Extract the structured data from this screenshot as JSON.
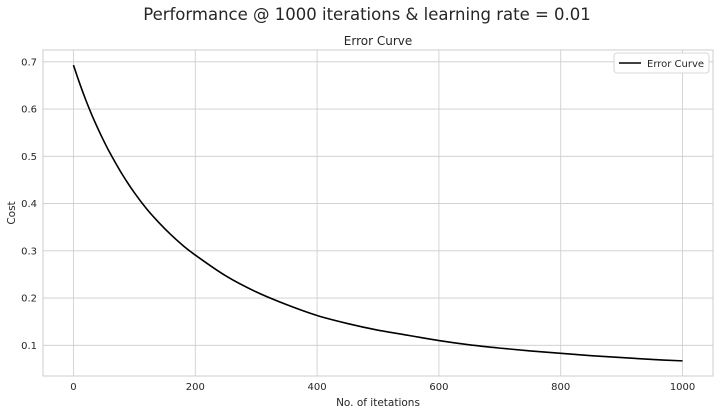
{
  "figure": {
    "suptitle": "Performance @ 1000 iterations & learning rate = 0.01"
  },
  "chart_data": {
    "type": "line",
    "title": "Error Curve",
    "xlabel": "No. of itetations",
    "ylabel": "Cost",
    "xlim": [
      -50,
      1050
    ],
    "ylim": [
      0.035,
      0.725
    ],
    "xticks": [
      0,
      200,
      400,
      600,
      800,
      1000
    ],
    "yticks": [
      0.1,
      0.2,
      0.3,
      0.4,
      0.5,
      0.6,
      0.7
    ],
    "xtick_labels": [
      "0",
      "200",
      "400",
      "600",
      "800",
      "1000"
    ],
    "ytick_labels": [
      "0.1",
      "0.2",
      "0.3",
      "0.4",
      "0.5",
      "0.6",
      "0.7"
    ],
    "grid": true,
    "legend_position": "top-right",
    "series": [
      {
        "name": "Error Curve",
        "color": "#000000",
        "x": [
          0,
          10,
          20,
          30,
          40,
          50,
          60,
          80,
          100,
          120,
          140,
          160,
          180,
          200,
          250,
          300,
          350,
          400,
          450,
          500,
          550,
          600,
          650,
          700,
          750,
          800,
          850,
          900,
          950,
          1000
        ],
        "y": [
          0.693,
          0.655,
          0.62,
          0.588,
          0.559,
          0.532,
          0.507,
          0.462,
          0.423,
          0.389,
          0.36,
          0.334,
          0.311,
          0.291,
          0.247,
          0.213,
          0.186,
          0.163,
          0.146,
          0.132,
          0.121,
          0.11,
          0.101,
          0.094,
          0.088,
          0.083,
          0.078,
          0.074,
          0.07,
          0.067
        ]
      }
    ]
  }
}
